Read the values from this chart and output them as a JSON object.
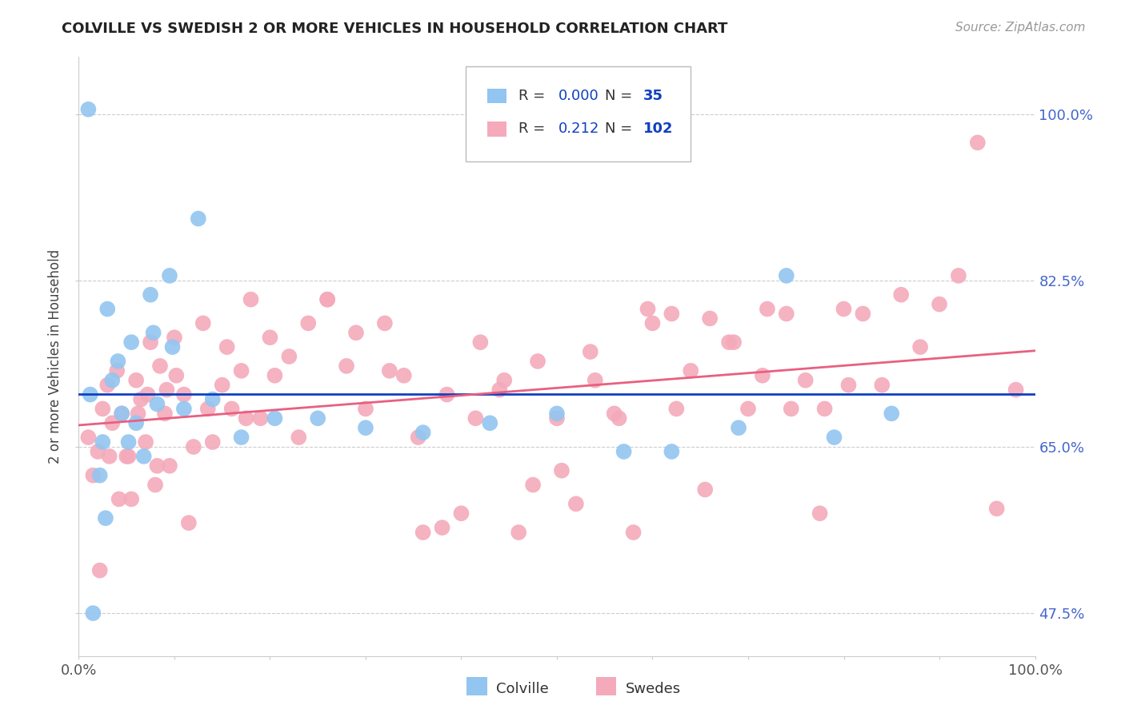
{
  "title": "COLVILLE VS SWEDISH 2 OR MORE VEHICLES IN HOUSEHOLD CORRELATION CHART",
  "source": "Source: ZipAtlas.com",
  "ylabel": "2 or more Vehicles in Household",
  "xmin": 0.0,
  "xmax": 100.0,
  "ymin": 43.0,
  "ymax": 106.0,
  "yticks": [
    47.5,
    65.0,
    82.5,
    100.0
  ],
  "xtick_positions": [
    0.0,
    10.0,
    20.0,
    30.0,
    40.0,
    50.0,
    60.0,
    70.0,
    80.0,
    90.0,
    100.0
  ],
  "blue_color": "#92C5F0",
  "pink_color": "#F4AABB",
  "blue_line_color": "#1040C0",
  "pink_line_color": "#E86080",
  "colville_R": "0.000",
  "colville_N": "35",
  "swedes_R": "0.212",
  "swedes_N": "102",
  "ytick_color": "#4466CC",
  "blue_x": [
    1.5,
    2.8,
    4.5,
    1.2,
    3.5,
    5.5,
    6.8,
    2.2,
    4.1,
    7.5,
    3.0,
    8.2,
    6.0,
    9.5,
    5.2,
    11.0,
    7.8,
    12.5,
    9.8,
    14.0,
    17.0,
    20.5,
    25.0,
    30.0,
    36.0,
    43.0,
    50.0,
    57.0,
    62.0,
    69.0,
    74.0,
    79.0,
    85.0,
    1.0,
    2.5
  ],
  "blue_y": [
    47.5,
    57.5,
    68.5,
    70.5,
    72.0,
    76.0,
    64.0,
    62.0,
    74.0,
    81.0,
    79.5,
    69.5,
    67.5,
    83.0,
    65.5,
    69.0,
    77.0,
    89.0,
    75.5,
    70.0,
    66.0,
    68.0,
    68.0,
    67.0,
    66.5,
    67.5,
    68.5,
    64.5,
    64.5,
    67.0,
    83.0,
    66.0,
    68.5,
    100.5,
    65.5
  ],
  "pink_x": [
    1.0,
    1.5,
    2.0,
    2.5,
    3.0,
    3.5,
    4.0,
    4.5,
    5.0,
    5.5,
    6.0,
    6.5,
    7.0,
    7.5,
    8.0,
    8.5,
    9.0,
    9.5,
    10.0,
    11.0,
    12.0,
    13.0,
    14.0,
    15.0,
    16.0,
    17.0,
    18.0,
    19.0,
    20.0,
    22.0,
    24.0,
    26.0,
    28.0,
    30.0,
    32.0,
    34.0,
    36.0,
    38.0,
    40.0,
    42.0,
    44.0,
    46.0,
    48.0,
    50.0,
    52.0,
    54.0,
    56.0,
    58.0,
    60.0,
    62.0,
    64.0,
    66.0,
    68.0,
    70.0,
    72.0,
    74.0,
    76.0,
    78.0,
    80.0,
    82.0,
    84.0,
    86.0,
    88.0,
    90.0,
    92.0,
    94.0,
    96.0,
    98.0,
    2.2,
    3.2,
    4.2,
    5.2,
    6.2,
    7.2,
    8.2,
    9.2,
    10.2,
    11.5,
    13.5,
    15.5,
    17.5,
    20.5,
    23.0,
    26.0,
    29.0,
    32.5,
    35.5,
    38.5,
    41.5,
    44.5,
    47.5,
    50.5,
    53.5,
    56.5,
    59.5,
    62.5,
    65.5,
    68.5,
    71.5,
    74.5,
    77.5,
    80.5
  ],
  "pink_y": [
    66.0,
    62.0,
    64.5,
    69.0,
    71.5,
    67.5,
    73.0,
    68.5,
    64.0,
    59.5,
    72.0,
    70.0,
    65.5,
    76.0,
    61.0,
    73.5,
    68.5,
    63.0,
    76.5,
    70.5,
    65.0,
    78.0,
    65.5,
    71.5,
    69.0,
    73.0,
    80.5,
    68.0,
    76.5,
    74.5,
    78.0,
    80.5,
    73.5,
    69.0,
    78.0,
    72.5,
    56.0,
    56.5,
    58.0,
    76.0,
    71.0,
    56.0,
    74.0,
    68.0,
    59.0,
    72.0,
    68.5,
    56.0,
    78.0,
    79.0,
    73.0,
    78.5,
    76.0,
    69.0,
    79.5,
    79.0,
    72.0,
    69.0,
    79.5,
    79.0,
    71.5,
    81.0,
    75.5,
    80.0,
    83.0,
    97.0,
    58.5,
    71.0,
    52.0,
    64.0,
    59.5,
    64.0,
    68.5,
    70.5,
    63.0,
    71.0,
    72.5,
    57.0,
    69.0,
    75.5,
    68.0,
    72.5,
    66.0,
    80.5,
    77.0,
    73.0,
    66.0,
    70.5,
    68.0,
    72.0,
    61.0,
    62.5,
    75.0,
    68.0,
    79.5,
    69.0,
    60.5,
    76.0,
    72.5,
    69.0,
    58.0,
    71.5
  ]
}
